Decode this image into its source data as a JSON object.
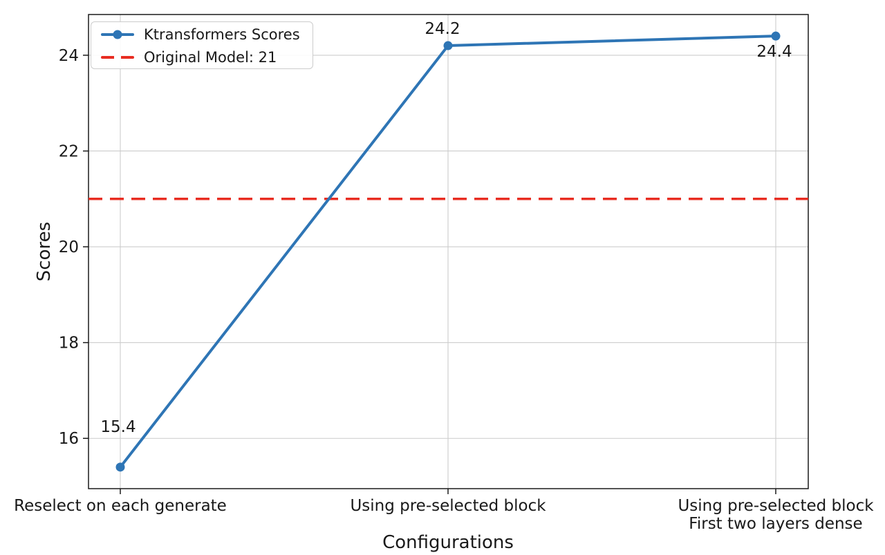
{
  "chart_data": {
    "type": "line",
    "title": "",
    "xlabel": "Configurations",
    "ylabel": "Scores",
    "categories": [
      "Reselect on each generate",
      "Using pre-selected block",
      "Using pre-selected block\nFirst two layers dense"
    ],
    "series": [
      {
        "name": "Ktransformers Scores",
        "values": [
          15.4,
          24.2,
          24.4
        ],
        "point_labels": [
          "15.4",
          "24.2",
          "24.4"
        ],
        "color": "#2e75b5",
        "style": "solid",
        "marker": "circle"
      }
    ],
    "reference_line": {
      "name": "Original Model: 21",
      "value": 21,
      "color": "#e82d22",
      "style": "dashed"
    },
    "yticks": [
      16,
      18,
      20,
      22,
      24
    ],
    "ylim": [
      14.95,
      24.85
    ],
    "grid": true,
    "legend_position": "upper-left",
    "colors": {
      "grid": "#cccccc",
      "axis": "#1a1a1a",
      "text": "#191919",
      "background": "#ffffff"
    }
  },
  "legend": {
    "items": [
      {
        "label": "Ktransformers Scores",
        "swatch": "blue-line-circle-marker"
      },
      {
        "label": "Original Model: 21",
        "swatch": "red-dashed-line"
      }
    ]
  }
}
